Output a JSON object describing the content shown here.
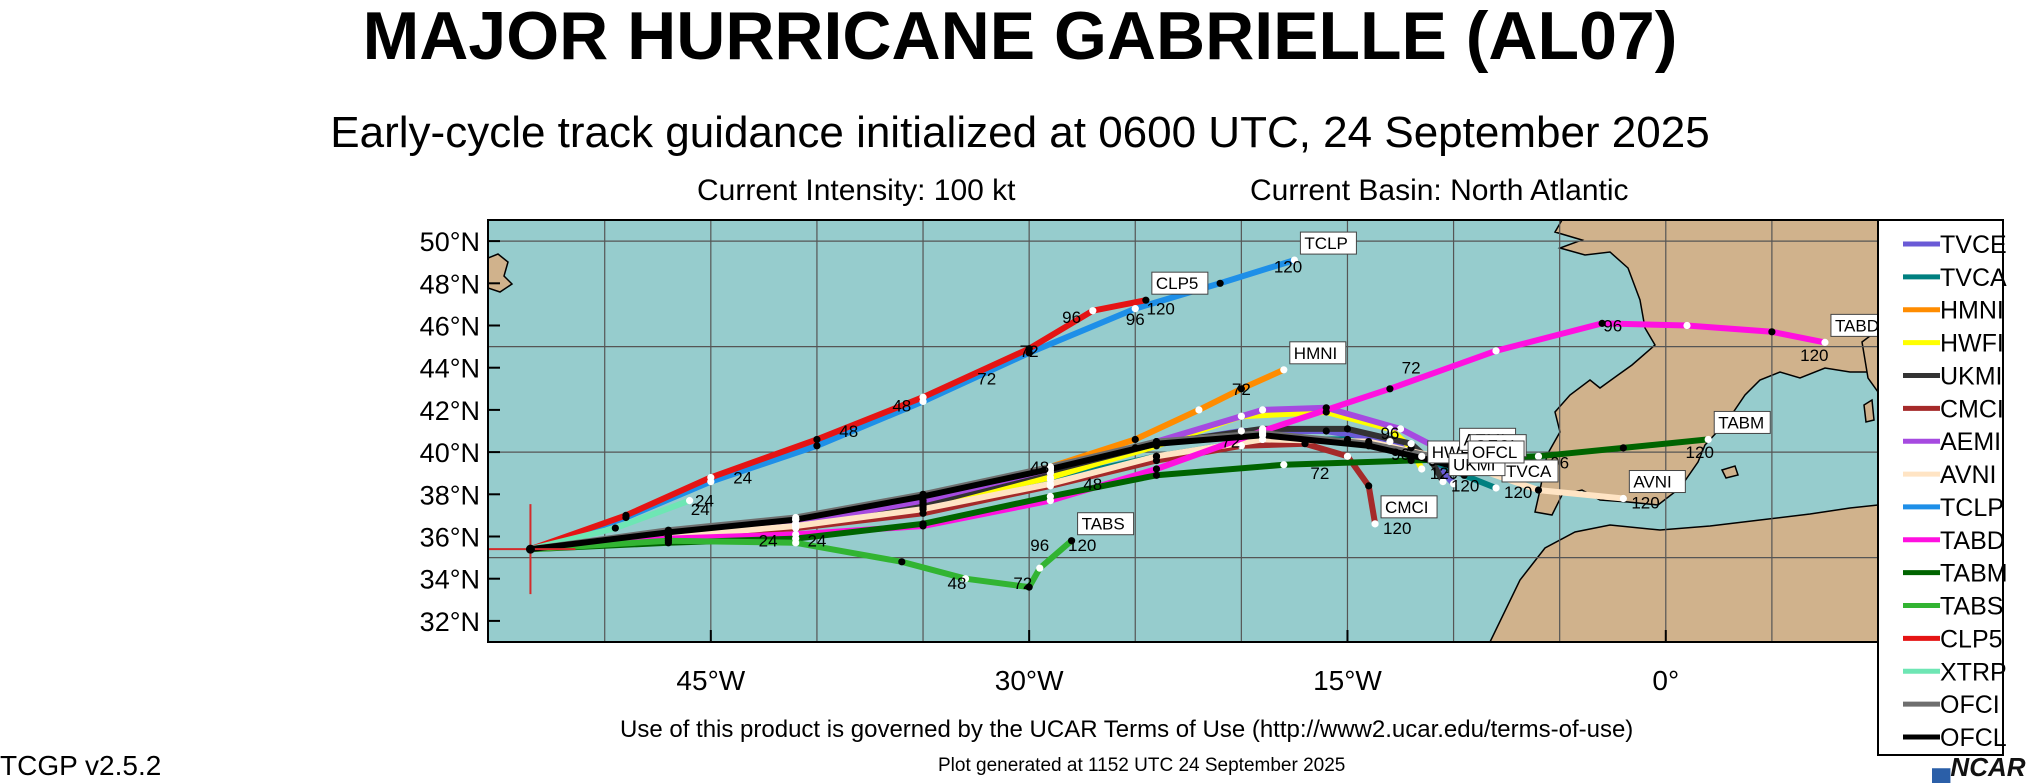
{
  "header": {
    "title": "MAJOR HURRICANE GABRIELLE (AL07)",
    "subtitle": "Early-cycle track guidance initialized at 0600 UTC, 24 September 2025",
    "intensity": "Current Intensity: 100 kt",
    "basin": "Current Basin: North Atlantic"
  },
  "footer": {
    "terms": "Use of this product is governed by the UCAR Terms of Use (http://www2.ucar.edu/terms-of-use)",
    "version": "TCGP v2.5.2",
    "generated": "Plot generated at 1152 UTC   24 September 2025",
    "logo": "NCAR"
  },
  "colors": {
    "ocean": "#96cccd",
    "land": "#d0b28c",
    "grid": "#555555",
    "storm_marker": "#d42b2b"
  },
  "chart_data": {
    "type": "line",
    "title": "MAJOR HURRICANE GABRIELLE (AL07)",
    "subtitle": "Early-cycle track guidance initialized at 0600 UTC, 24 September 2025",
    "xlim": [
      -55.5,
      10
    ],
    "ylim": [
      31,
      51
    ],
    "x_ticks": [
      {
        "v": -45,
        "label": "45°W"
      },
      {
        "v": -30,
        "label": "30°W"
      },
      {
        "v": -15,
        "label": "15°W"
      },
      {
        "v": 0,
        "label": "0°"
      }
    ],
    "y_ticks": [
      {
        "v": 32,
        "label": "32°N"
      },
      {
        "v": 34,
        "label": "34°N"
      },
      {
        "v": 36,
        "label": "36°N"
      },
      {
        "v": 38,
        "label": "38°N"
      },
      {
        "v": 40,
        "label": "40°N"
      },
      {
        "v": 42,
        "label": "42°N"
      },
      {
        "v": 44,
        "label": "44°N"
      },
      {
        "v": 46,
        "label": "46°N"
      },
      {
        "v": 48,
        "label": "48°N"
      },
      {
        "v": 50,
        "label": "50°N"
      }
    ],
    "grid": true,
    "legend_position": "right",
    "storm_position": {
      "lon": -53.5,
      "lat": 35.4
    },
    "series": [
      {
        "name": "TVCE",
        "color": "#6a5ad6",
        "points": [
          [
            -53.5,
            35.4
          ],
          [
            -47,
            36.1
          ],
          [
            -41,
            36.6
          ],
          [
            -35,
            37.6
          ],
          [
            -29,
            39.0
          ],
          [
            -25,
            40.2
          ],
          [
            -20,
            41.0
          ],
          [
            -16,
            41.0
          ],
          [
            -13,
            40.5
          ],
          [
            -11,
            39.6
          ],
          [
            -10,
            38.5
          ]
        ],
        "labels": [],
        "tag": null
      },
      {
        "name": "TVCA",
        "color": "#008080",
        "points": [
          [
            -53.5,
            35.4
          ],
          [
            -47,
            36.0
          ],
          [
            -41,
            36.5
          ],
          [
            -35,
            37.4
          ],
          [
            -29,
            38.7
          ],
          [
            -24,
            39.8
          ],
          [
            -19,
            40.6
          ],
          [
            -15,
            40.6
          ],
          [
            -11.5,
            39.8
          ],
          [
            -9.5,
            38.9
          ],
          [
            -8,
            38.3
          ]
        ],
        "labels": [],
        "tag": {
          "text": "TVCA",
          "label": "120"
        }
      },
      {
        "name": "HMNI",
        "color": "#ff8c00",
        "points": [
          [
            -53.5,
            35.4
          ],
          [
            -47,
            36.2
          ],
          [
            -41,
            36.8
          ],
          [
            -35,
            37.9
          ],
          [
            -29,
            39.3
          ],
          [
            -25,
            40.6
          ],
          [
            -22,
            42.0
          ],
          [
            -20,
            43.0
          ],
          [
            -18,
            43.9
          ]
        ],
        "labels": [
          {
            "text": "72",
            "at": [
              -20,
              43.0
            ]
          }
        ],
        "tag": {
          "text": "HMNI",
          "label": null
        }
      },
      {
        "name": "HWFI",
        "color": "#ffff00",
        "points": [
          [
            -53.5,
            35.4
          ],
          [
            -47,
            36.1
          ],
          [
            -41,
            36.6
          ],
          [
            -35,
            37.5
          ],
          [
            -29,
            38.8
          ],
          [
            -24,
            40.3
          ],
          [
            -20,
            41.7
          ],
          [
            -16,
            41.9
          ],
          [
            -13,
            41.1
          ],
          [
            -12,
            40.2
          ],
          [
            -11.5,
            39.2
          ]
        ],
        "labels": [
          {
            "text": "96",
            "at": [
              -13,
              40.9
            ]
          }
        ],
        "tag": {
          "text": "HWFI",
          "label": "120"
        }
      },
      {
        "name": "UKMI",
        "color": "#333333",
        "points": [
          [
            -53.5,
            35.4
          ],
          [
            -47,
            36.0
          ],
          [
            -41,
            36.5
          ],
          [
            -35,
            37.5
          ],
          [
            -29,
            39.1
          ],
          [
            -24,
            40.4
          ],
          [
            -19,
            41.1
          ],
          [
            -15,
            41.1
          ],
          [
            -12,
            40.4
          ],
          [
            -11,
            39.5
          ],
          [
            -10.5,
            38.6
          ]
        ],
        "labels": [],
        "tag": {
          "text": "UKMI",
          "label": "120"
        }
      },
      {
        "name": "CMCI",
        "color": "#a52a2a",
        "points": [
          [
            -53.5,
            35.4
          ],
          [
            -47,
            36.0
          ],
          [
            -41,
            36.4
          ],
          [
            -35,
            37.1
          ],
          [
            -29,
            38.4
          ],
          [
            -24,
            39.6
          ],
          [
            -20,
            40.3
          ],
          [
            -17,
            40.4
          ],
          [
            -15,
            39.8
          ],
          [
            -14,
            38.4
          ],
          [
            -13.7,
            36.6
          ]
        ],
        "labels": [],
        "tag": {
          "text": "CMCI",
          "label": "120"
        }
      },
      {
        "name": "AEMI",
        "color": "#a64ae0",
        "points": [
          [
            -53.5,
            35.4
          ],
          [
            -47,
            36.1
          ],
          [
            -41,
            36.6
          ],
          [
            -35,
            37.7
          ],
          [
            -29,
            39.2
          ],
          [
            -24,
            40.5
          ],
          [
            -19,
            42.0
          ],
          [
            -16,
            42.1
          ],
          [
            -12.5,
            41.1
          ],
          [
            -10,
            39.8
          ]
        ],
        "labels": [],
        "tag": {
          "text": "AEMI",
          "label": null
        }
      },
      {
        "name": "AVNI",
        "color": "#ffe4c4",
        "points": [
          [
            -53.5,
            35.4
          ],
          [
            -47,
            36.0
          ],
          [
            -41,
            36.5
          ],
          [
            -35,
            37.3
          ],
          [
            -29,
            38.5
          ],
          [
            -24,
            39.8
          ],
          [
            -19,
            40.6
          ],
          [
            -14,
            40.5
          ],
          [
            -10,
            39.6
          ],
          [
            -6,
            38.2
          ],
          [
            -2,
            37.8
          ]
        ],
        "labels": [],
        "tag": {
          "text": "AVNI",
          "label": "120"
        }
      },
      {
        "name": "TCLP",
        "color": "#1e8fe8",
        "points": [
          [
            -53.5,
            35.4
          ],
          [
            -49,
            36.9
          ],
          [
            -45,
            38.6
          ],
          [
            -40,
            40.3
          ],
          [
            -35,
            42.4
          ],
          [
            -30,
            44.7
          ],
          [
            -25,
            46.8
          ],
          [
            -21,
            48.0
          ],
          [
            -17.5,
            49.1
          ]
        ],
        "labels": [
          {
            "text": "24",
            "at": [
              -45.3,
              37.7
            ]
          },
          {
            "text": "48",
            "at": [
              -38.5,
              41.0
            ]
          },
          {
            "text": "72",
            "at": [
              -32,
              43.5
            ]
          },
          {
            "text": "96",
            "at": [
              -25,
              46.3
            ]
          },
          {
            "text": "120",
            "at": [
              -17.8,
              48.8
            ]
          }
        ],
        "tag": {
          "text": "TCLP",
          "label": null
        }
      },
      {
        "name": "TABD",
        "color": "#ff10e0",
        "points": [
          [
            -53.5,
            35.4
          ],
          [
            -47,
            35.9
          ],
          [
            -41,
            36.1
          ],
          [
            -35,
            36.5
          ],
          [
            -29,
            37.7
          ],
          [
            -24,
            39.2
          ],
          [
            -19,
            41.0
          ],
          [
            -13,
            43.0
          ],
          [
            -8,
            44.8
          ],
          [
            -3,
            46.1
          ],
          [
            1,
            46.0
          ],
          [
            5,
            45.7
          ],
          [
            7.5,
            45.2
          ]
        ],
        "labels": [
          {
            "text": "48",
            "at": [
              -27,
              38.5
            ]
          },
          {
            "text": "72",
            "at": [
              -12,
              44.0
            ]
          },
          {
            "text": "96",
            "at": [
              -2.5,
              46.0
            ]
          },
          {
            "text": "120",
            "at": [
              7,
              44.6
            ]
          }
        ],
        "tag": {
          "text": "TABD",
          "label": null
        }
      },
      {
        "name": "TABM",
        "color": "#006400",
        "points": [
          [
            -53.5,
            35.4
          ],
          [
            -47,
            35.7
          ],
          [
            -41,
            35.9
          ],
          [
            -35,
            36.6
          ],
          [
            -29,
            37.9
          ],
          [
            -24,
            38.9
          ],
          [
            -18,
            39.4
          ],
          [
            -12,
            39.6
          ],
          [
            -6,
            39.8
          ],
          [
            -2,
            40.2
          ],
          [
            2,
            40.6
          ]
        ],
        "labels": [
          {
            "text": "24",
            "at": [
              -40,
              35.8
            ]
          },
          {
            "text": "72",
            "at": [
              -16.3,
              39.0
            ]
          },
          {
            "text": "96",
            "at": [
              -5,
              39.5
            ]
          },
          {
            "text": "120",
            "at": [
              1.6,
              40.0
            ]
          }
        ],
        "tag": {
          "text": "TABM",
          "label": null
        }
      },
      {
        "name": "TABS",
        "color": "#32b432",
        "points": [
          [
            -53.5,
            35.4
          ],
          [
            -47,
            35.8
          ],
          [
            -41,
            35.7
          ],
          [
            -36,
            34.8
          ],
          [
            -33,
            34.0
          ],
          [
            -30,
            33.6
          ],
          [
            -29.5,
            34.5
          ],
          [
            -28,
            35.8
          ]
        ],
        "labels": [
          {
            "text": "24",
            "at": [
              -42.3,
              35.8
            ]
          },
          {
            "text": "48",
            "at": [
              -33.4,
              33.8
            ]
          },
          {
            "text": "72",
            "at": [
              -30.3,
              33.8
            ]
          },
          {
            "text": "96",
            "at": [
              -29.5,
              35.6
            ]
          },
          {
            "text": "120",
            "at": [
              -27.5,
              35.6
            ]
          }
        ],
        "tag": {
          "text": "TABS",
          "label": null
        }
      },
      {
        "name": "CLP5",
        "color": "#e51414",
        "points": [
          [
            -53.5,
            35.4
          ],
          [
            -49,
            37.0
          ],
          [
            -45,
            38.8
          ],
          [
            -40,
            40.6
          ],
          [
            -35,
            42.6
          ],
          [
            -30,
            44.9
          ],
          [
            -27,
            46.7
          ],
          [
            -24.5,
            47.2
          ]
        ],
        "labels": [
          {
            "text": "24",
            "at": [
              -43.5,
              38.8
            ]
          },
          {
            "text": "48",
            "at": [
              -36,
              42.2
            ]
          },
          {
            "text": "72",
            "at": [
              -30,
              44.8
            ]
          },
          {
            "text": "96",
            "at": [
              -28,
              46.4
            ]
          },
          {
            "text": "120",
            "at": [
              -23.8,
              46.8
            ]
          }
        ],
        "tag": {
          "text": "CLP5",
          "label": null
        }
      },
      {
        "name": "XTRP",
        "color": "#6ee6b4",
        "points": [
          [
            -53.5,
            35.4
          ],
          [
            -49.5,
            36.4
          ],
          [
            -46,
            37.7
          ]
        ],
        "labels": [
          {
            "text": "24",
            "at": [
              -45.5,
              37.3
            ]
          }
        ],
        "tag": null
      },
      {
        "name": "OFCI",
        "color": "#6e6e6e",
        "points": [
          [
            -53.5,
            35.4
          ],
          [
            -47,
            36.3
          ],
          [
            -41,
            36.9
          ],
          [
            -35,
            38.0
          ],
          [
            -29,
            39.3
          ],
          [
            -24,
            40.5
          ],
          [
            -19,
            40.9
          ],
          [
            -14,
            40.4
          ],
          [
            -11,
            39.8
          ],
          [
            -9.5,
            39.5
          ]
        ],
        "labels": [
          {
            "text": "48",
            "at": [
              -29.5,
              39.3
            ]
          },
          {
            "text": "72",
            "at": [
              -20.5,
              40.5
            ]
          },
          {
            "text": "96",
            "at": [
              -12.5,
              39.9
            ]
          },
          {
            "text": "120",
            "at": [
              -9.8,
              39.3
            ]
          }
        ],
        "tag": {
          "text": "OFCI",
          "label": null
        }
      },
      {
        "name": "OFCL",
        "color": "#000000",
        "points": [
          [
            -53.5,
            35.4
          ],
          [
            -47,
            36.2
          ],
          [
            -41,
            36.8
          ],
          [
            -35,
            37.9
          ],
          [
            -29,
            39.2
          ],
          [
            -24,
            40.4
          ],
          [
            -19,
            40.8
          ],
          [
            -14,
            40.3
          ],
          [
            -11,
            39.6
          ],
          [
            -9.6,
            39.2
          ]
        ],
        "labels": [],
        "tag": {
          "text": "OFCL",
          "label": null
        }
      }
    ]
  }
}
